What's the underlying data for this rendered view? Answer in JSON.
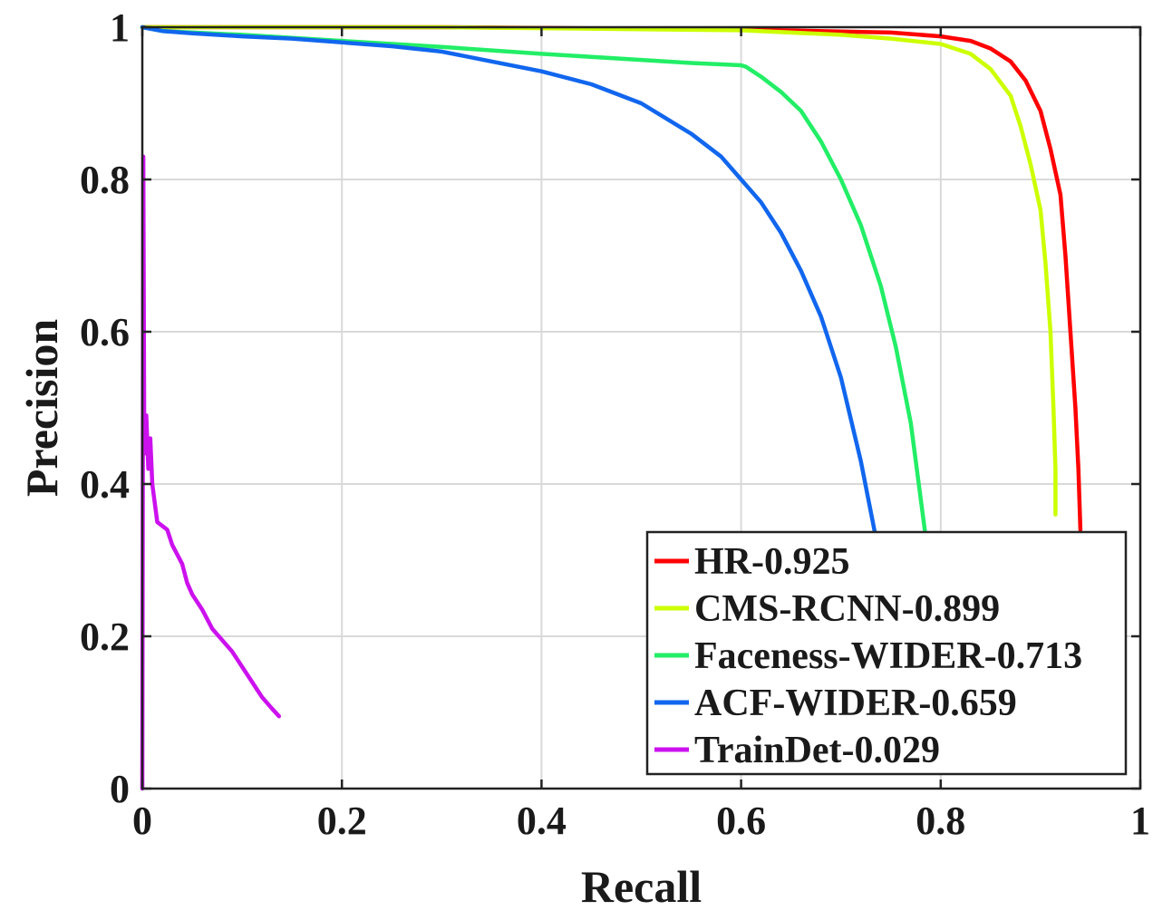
{
  "chart_data": {
    "type": "line",
    "title": "",
    "xlabel": "Recall",
    "ylabel": "Precision",
    "xlim": [
      0,
      1
    ],
    "ylim": [
      0,
      1
    ],
    "grid": true,
    "legend_position": "bottom-right",
    "x_ticks": [
      0,
      0.2,
      0.4,
      0.6,
      0.8,
      1
    ],
    "x_tick_labels": [
      "0",
      "0.2",
      "0.4",
      "0.6",
      "0.8",
      "1"
    ],
    "y_ticks": [
      0,
      0.2,
      0.4,
      0.6,
      0.8,
      1
    ],
    "y_tick_labels": [
      "0",
      "0.2",
      "0.4",
      "0.6",
      "0.8",
      "1"
    ],
    "series": [
      {
        "name": "HR-0.925",
        "color": "#ff0000",
        "points": [
          [
            0.0,
            1.0
          ],
          [
            0.09,
            1.0
          ],
          [
            0.3,
            1.0
          ],
          [
            0.6,
            0.997
          ],
          [
            0.75,
            0.993
          ],
          [
            0.8,
            0.988
          ],
          [
            0.83,
            0.982
          ],
          [
            0.85,
            0.972
          ],
          [
            0.87,
            0.955
          ],
          [
            0.885,
            0.93
          ],
          [
            0.9,
            0.89
          ],
          [
            0.91,
            0.84
          ],
          [
            0.92,
            0.78
          ],
          [
            0.925,
            0.7
          ],
          [
            0.93,
            0.6
          ],
          [
            0.935,
            0.5
          ],
          [
            0.938,
            0.42
          ],
          [
            0.94,
            0.34
          ]
        ]
      },
      {
        "name": "CMS-RCNN-0.899",
        "color": "#ccff00",
        "points": [
          [
            0.0,
            1.0
          ],
          [
            0.3,
            1.0
          ],
          [
            0.6,
            0.996
          ],
          [
            0.7,
            0.99
          ],
          [
            0.75,
            0.985
          ],
          [
            0.8,
            0.978
          ],
          [
            0.83,
            0.965
          ],
          [
            0.85,
            0.945
          ],
          [
            0.87,
            0.91
          ],
          [
            0.88,
            0.87
          ],
          [
            0.89,
            0.82
          ],
          [
            0.9,
            0.76
          ],
          [
            0.905,
            0.69
          ],
          [
            0.91,
            0.6
          ],
          [
            0.913,
            0.5
          ],
          [
            0.915,
            0.42
          ],
          [
            0.915,
            0.36
          ]
        ]
      },
      {
        "name": "Faceness-WIDER-0.713",
        "color": "#22ee66",
        "points": [
          [
            0.0,
            1.0
          ],
          [
            0.02,
            0.995
          ],
          [
            0.1,
            0.99
          ],
          [
            0.2,
            0.982
          ],
          [
            0.3,
            0.974
          ],
          [
            0.4,
            0.965
          ],
          [
            0.5,
            0.957
          ],
          [
            0.55,
            0.953
          ],
          [
            0.6,
            0.95
          ],
          [
            0.605,
            0.948
          ],
          [
            0.62,
            0.935
          ],
          [
            0.64,
            0.915
          ],
          [
            0.66,
            0.89
          ],
          [
            0.68,
            0.85
          ],
          [
            0.7,
            0.8
          ],
          [
            0.72,
            0.74
          ],
          [
            0.74,
            0.66
          ],
          [
            0.755,
            0.58
          ],
          [
            0.77,
            0.48
          ],
          [
            0.78,
            0.38
          ],
          [
            0.785,
            0.33
          ]
        ]
      },
      {
        "name": "ACF-WIDER-0.659",
        "color": "#1166ee",
        "points": [
          [
            0.0,
            1.0
          ],
          [
            0.02,
            0.995
          ],
          [
            0.05,
            0.992
          ],
          [
            0.1,
            0.988
          ],
          [
            0.15,
            0.985
          ],
          [
            0.2,
            0.98
          ],
          [
            0.25,
            0.975
          ],
          [
            0.3,
            0.968
          ],
          [
            0.35,
            0.955
          ],
          [
            0.4,
            0.942
          ],
          [
            0.45,
            0.925
          ],
          [
            0.5,
            0.9
          ],
          [
            0.55,
            0.86
          ],
          [
            0.58,
            0.83
          ],
          [
            0.6,
            0.8
          ],
          [
            0.62,
            0.77
          ],
          [
            0.64,
            0.73
          ],
          [
            0.66,
            0.68
          ],
          [
            0.68,
            0.62
          ],
          [
            0.7,
            0.54
          ],
          [
            0.72,
            0.43
          ],
          [
            0.735,
            0.33
          ]
        ]
      },
      {
        "name": "TrainDet-0.029",
        "color": "#cc11ee",
        "points": [
          [
            0.0,
            0.0
          ],
          [
            0.001,
            0.83
          ],
          [
            0.002,
            0.44
          ],
          [
            0.004,
            0.49
          ],
          [
            0.006,
            0.42
          ],
          [
            0.008,
            0.46
          ],
          [
            0.01,
            0.4
          ],
          [
            0.015,
            0.35
          ],
          [
            0.02,
            0.345
          ],
          [
            0.025,
            0.34
          ],
          [
            0.03,
            0.32
          ],
          [
            0.04,
            0.295
          ],
          [
            0.045,
            0.27
          ],
          [
            0.05,
            0.255
          ],
          [
            0.06,
            0.235
          ],
          [
            0.07,
            0.21
          ],
          [
            0.08,
            0.195
          ],
          [
            0.09,
            0.18
          ],
          [
            0.1,
            0.16
          ],
          [
            0.11,
            0.14
          ],
          [
            0.12,
            0.12
          ],
          [
            0.13,
            0.105
          ],
          [
            0.137,
            0.095
          ]
        ]
      }
    ]
  }
}
